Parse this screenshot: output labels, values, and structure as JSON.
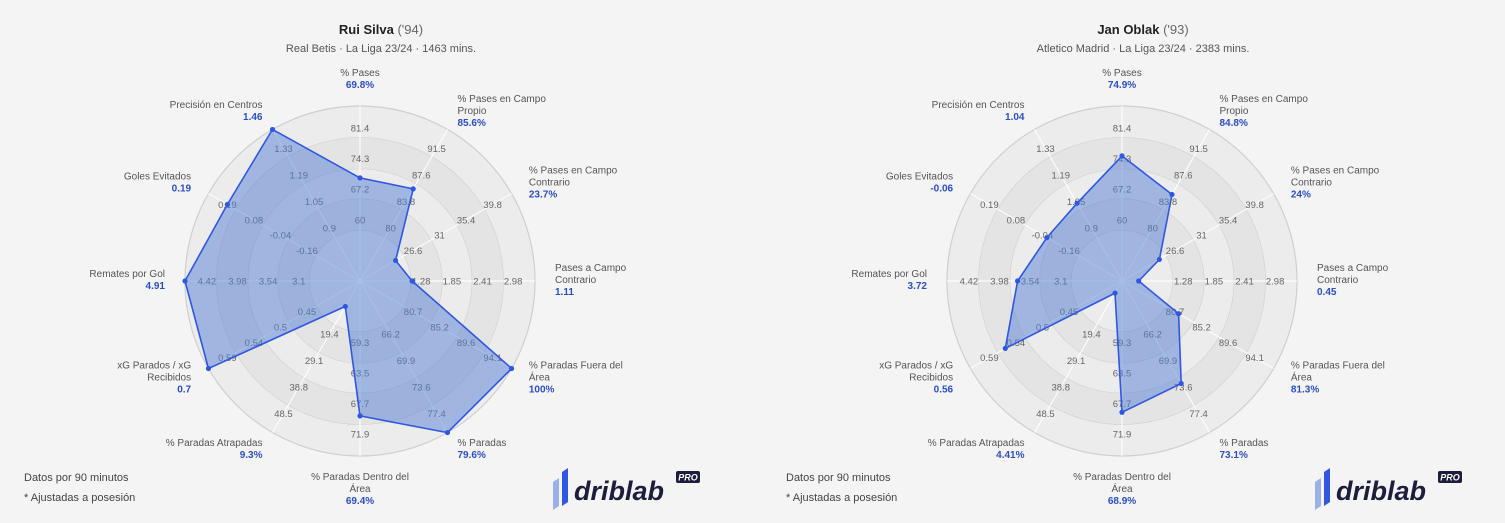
{
  "colors": {
    "accent": "#2f57e0",
    "fill": "rgba(84,128,214,0.5)",
    "value": "#2b4fc2",
    "ring_dark": "#e2e2e2",
    "ring_light": "#ececec"
  },
  "footnotes": {
    "line1": "Datos por 90 minutos",
    "line2": "* Ajustadas a posesión"
  },
  "logo": {
    "text": "driblab",
    "badge": "PRO"
  },
  "chart_data": [
    {
      "type": "radar",
      "player": "Rui Silva",
      "birth": "('94)",
      "subtitle": "Real Betis · La Liga 23/24 · 1463 mins.",
      "axes": [
        {
          "label": [
            "% Pases"
          ],
          "display": "69.8%",
          "value": 69.8,
          "ticks": [
            "60",
            "67.2",
            "74.3",
            "81.4"
          ]
        },
        {
          "label": [
            "% Pases en Campo",
            "Propio"
          ],
          "display": "85.6%",
          "value": 85.6,
          "ticks": [
            "80",
            "83.8",
            "87.6",
            "91.5"
          ]
        },
        {
          "label": [
            "% Pases en Campo",
            "Contrario"
          ],
          "display": "23.7%",
          "value": 23.7,
          "ticks": [
            "26.6",
            "31",
            "35.4",
            "39.8"
          ]
        },
        {
          "label": [
            "Pases a Campo",
            "Contrario"
          ],
          "display": "1.11",
          "value": 1.11,
          "ticks": [
            "1.28",
            "1.85",
            "2.41",
            "2.98"
          ]
        },
        {
          "label": [
            "% Paradas Fuera del",
            "Área"
          ],
          "display": "100%",
          "value": 100,
          "ticks": [
            "80.7",
            "85.2",
            "89.6",
            "94.1"
          ]
        },
        {
          "label": [
            "% Paradas"
          ],
          "display": "79.6%",
          "value": 79.6,
          "ticks": [
            "66.2",
            "69.9",
            "73.6",
            "77.4"
          ]
        },
        {
          "label": [
            "% Paradas Dentro del",
            "Área"
          ],
          "display": "69.4%",
          "value": 69.4,
          "ticks": [
            "59.3",
            "63.5",
            "67.7",
            "71.9"
          ]
        },
        {
          "label": [
            "% Paradas Atrapadas"
          ],
          "display": "9.3%",
          "value": 9.3,
          "ticks": [
            "19.4",
            "29.1",
            "38.8",
            "48.5"
          ]
        },
        {
          "label": [
            "xG Parados / xG",
            "Recibidos"
          ],
          "display": "0.7",
          "value": 0.7,
          "ticks": [
            "0.45",
            "0.5",
            "0.54",
            "0.59"
          ]
        },
        {
          "label": [
            "Remates por Gol"
          ],
          "display": "4.91",
          "value": 4.91,
          "ticks": [
            "3.1",
            "3.54",
            "3.98",
            "4.42"
          ]
        },
        {
          "label": [
            "Goles Evitados"
          ],
          "display": "0.19",
          "value": 0.19,
          "ticks": [
            "-0.16",
            "-0.04",
            "0.08",
            "0.19"
          ]
        },
        {
          "label": [
            "Precisión en Centros"
          ],
          "display": "1.46",
          "value": 1.46,
          "ticks": [
            "0.9",
            "1.05",
            "1.19",
            "1.33"
          ]
        }
      ],
      "levels": [
        0.29,
        0.47,
        0.64,
        0.82,
        1.0
      ]
    },
    {
      "type": "radar",
      "player": "Jan Oblak",
      "birth": "('93)",
      "subtitle": "Atletico Madrid · La Liga 23/24 · 2383 mins.",
      "axes": [
        {
          "label": [
            "% Pases"
          ],
          "display": "74.9%",
          "value": 74.9,
          "ticks": [
            "60",
            "67.2",
            "74.3",
            "81.4"
          ]
        },
        {
          "label": [
            "% Pases en Campo",
            "Propio"
          ],
          "display": "84.8%",
          "value": 84.8,
          "ticks": [
            "80",
            "83.8",
            "87.6",
            "91.5"
          ]
        },
        {
          "label": [
            "% Pases en Campo",
            "Contrario"
          ],
          "display": "24%",
          "value": 24,
          "ticks": [
            "26.6",
            "31",
            "35.4",
            "39.8"
          ]
        },
        {
          "label": [
            "Pases a Campo",
            "Contrario"
          ],
          "display": "0.45",
          "value": 0.45,
          "ticks": [
            "1.28",
            "1.85",
            "2.41",
            "2.98"
          ]
        },
        {
          "label": [
            "% Paradas Fuera del",
            "Área"
          ],
          "display": "81.3%",
          "value": 81.3,
          "ticks": [
            "80.7",
            "85.2",
            "89.6",
            "94.1"
          ]
        },
        {
          "label": [
            "% Paradas"
          ],
          "display": "73.1%",
          "value": 73.1,
          "ticks": [
            "66.2",
            "69.9",
            "73.6",
            "77.4"
          ]
        },
        {
          "label": [
            "% Paradas Dentro del",
            "Área"
          ],
          "display": "68.9%",
          "value": 68.9,
          "ticks": [
            "59.3",
            "63.5",
            "67.7",
            "71.9"
          ]
        },
        {
          "label": [
            "% Paradas Atrapadas"
          ],
          "display": "4.41%",
          "value": 4.41,
          "ticks": [
            "19.4",
            "29.1",
            "38.8",
            "48.5"
          ]
        },
        {
          "label": [
            "xG Parados / xG",
            "Recibidos"
          ],
          "display": "0.56",
          "value": 0.56,
          "ticks": [
            "0.45",
            "0.5",
            "0.54",
            "0.59"
          ]
        },
        {
          "label": [
            "Remates por Gol"
          ],
          "display": "3.72",
          "value": 3.72,
          "ticks": [
            "3.1",
            "3.54",
            "3.98",
            "4.42"
          ]
        },
        {
          "label": [
            "Goles Evitados"
          ],
          "display": "-0.06",
          "value": -0.06,
          "ticks": [
            "-0.16",
            "-0.04",
            "0.08",
            "0.19"
          ]
        },
        {
          "label": [
            "Precisión en Centros"
          ],
          "display": "1.04",
          "value": 1.04,
          "ticks": [
            "0.9",
            "1.05",
            "1.19",
            "1.33"
          ]
        }
      ],
      "levels": [
        0.29,
        0.47,
        0.64,
        0.82,
        1.0
      ]
    }
  ]
}
